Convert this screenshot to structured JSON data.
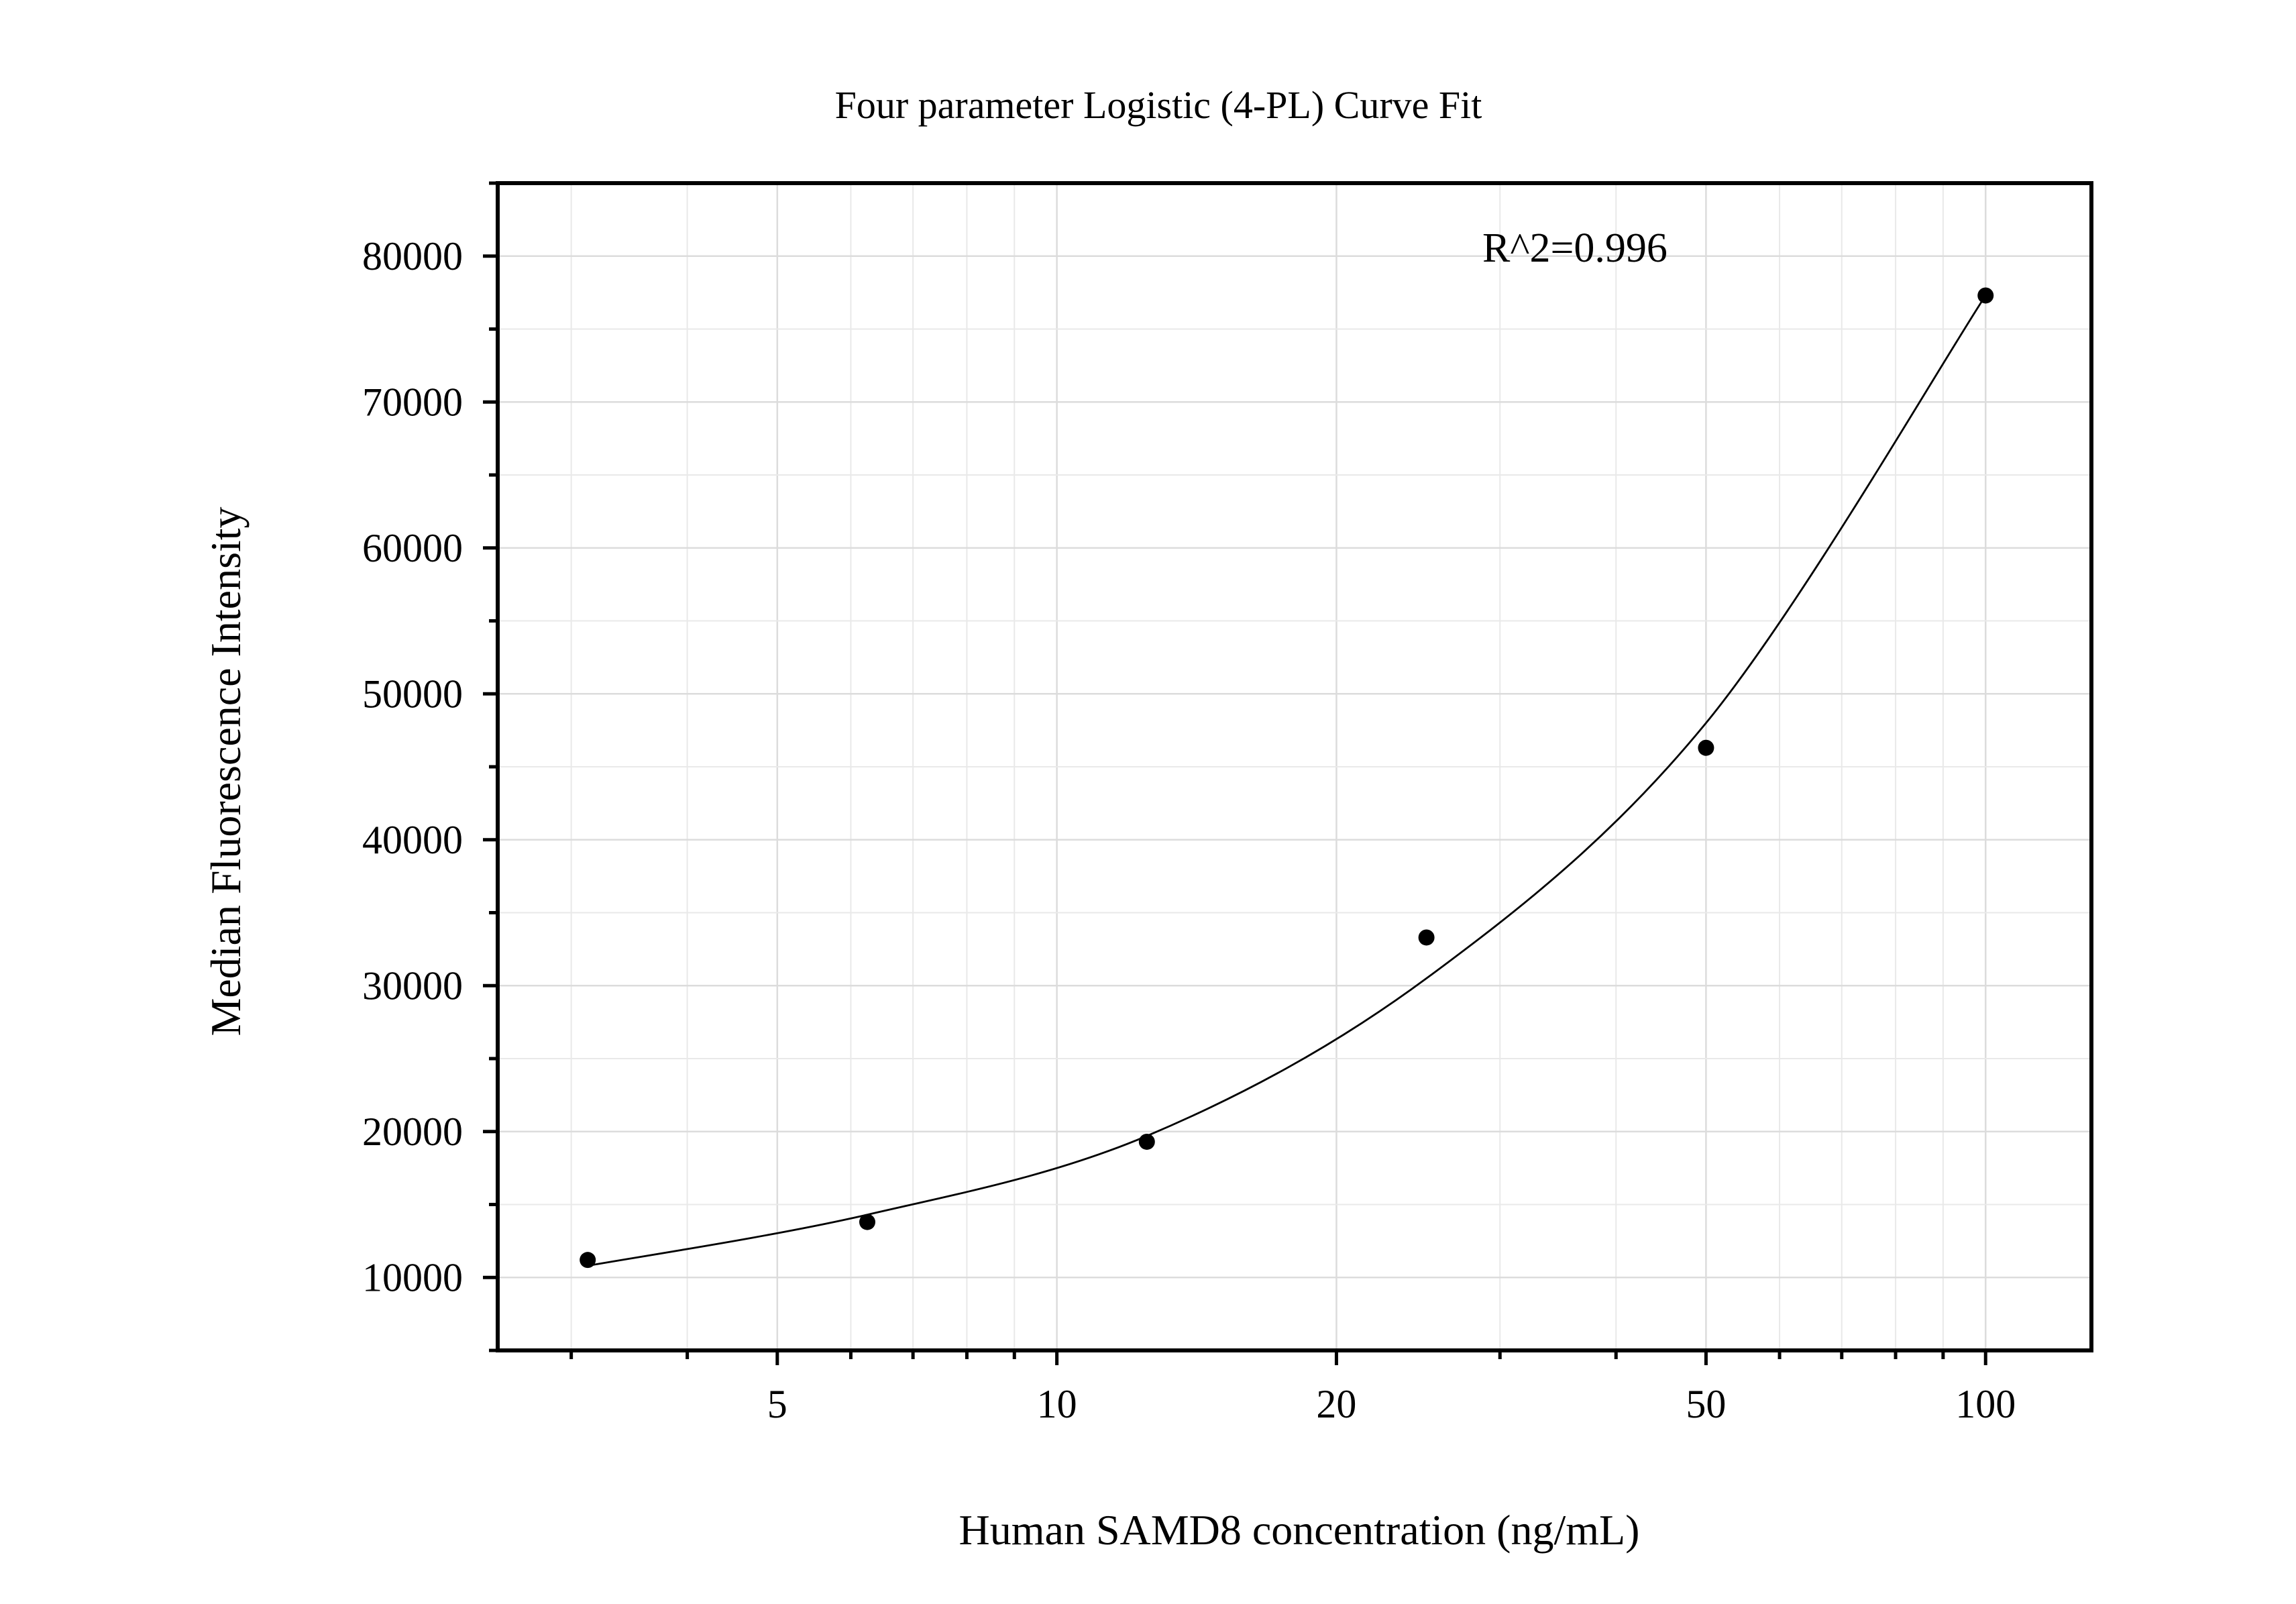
{
  "chart_data": {
    "type": "scatter",
    "title": "Four parameter Logistic (4-PL) Curve Fit",
    "xlabel": "Human SAMD8 concentration (ng/mL)",
    "ylabel": "Median Fluorescence Intensity",
    "annotation": "R^2=0.996",
    "x_scale": "log",
    "xlim": [
      2.5,
      130
    ],
    "ylim": [
      5000,
      85000
    ],
    "x_ticks": [
      5,
      10,
      20,
      50,
      100
    ],
    "x_tick_labels": [
      "5",
      "10",
      "20",
      "50",
      "100"
    ],
    "y_ticks": [
      10000,
      20000,
      30000,
      40000,
      50000,
      60000,
      70000,
      80000
    ],
    "y_tick_labels": [
      "10000",
      "20000",
      "30000",
      "40000",
      "50000",
      "60000",
      "70000",
      "80000"
    ],
    "grid": true,
    "points": {
      "x": [
        3.125,
        6.25,
        12.5,
        25,
        50,
        100
      ],
      "y": [
        11200,
        13800,
        19300,
        33300,
        46300,
        77300
      ]
    },
    "fit_curve": {
      "x": [
        3.125,
        6.25,
        12.5,
        25,
        50,
        100
      ],
      "y": [
        10800,
        14300,
        19700,
        30500,
        48000,
        77300
      ]
    }
  }
}
